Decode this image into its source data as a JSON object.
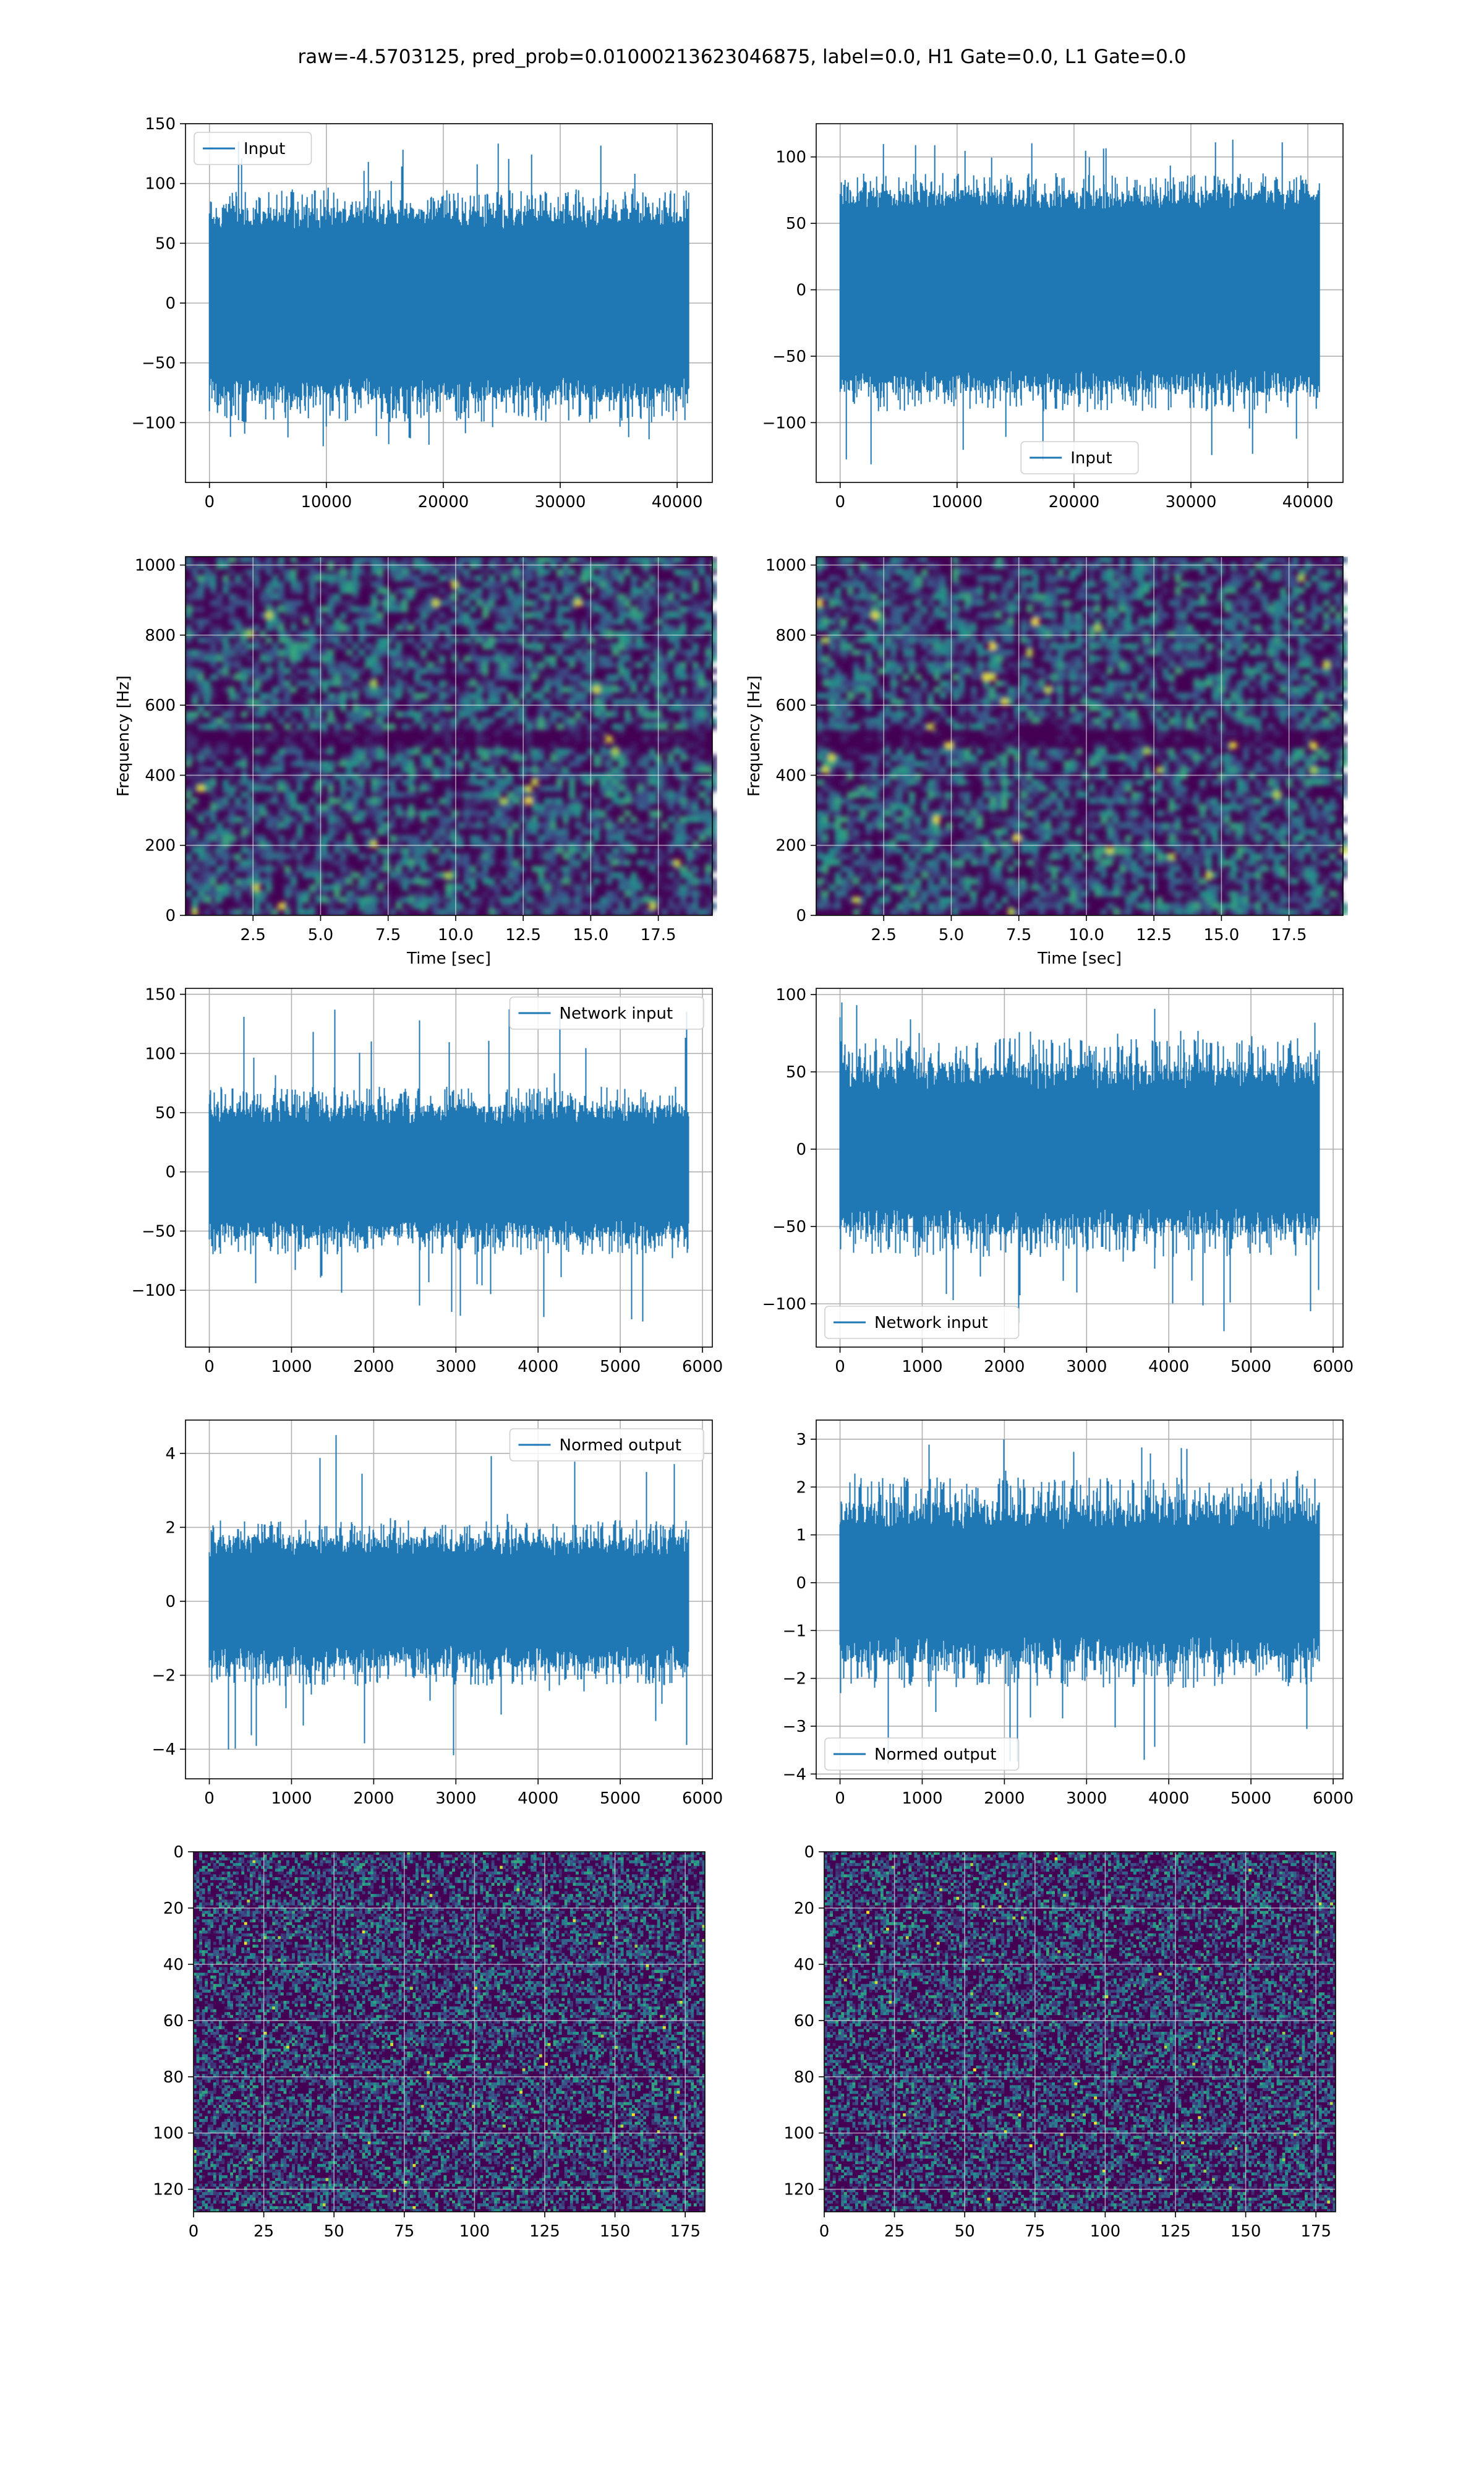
{
  "figure": {
    "suptitle": "raw=-4.5703125, pred_prob=0.01000213623046875, label=0.0, H1 Gate=0.0, L1 Gate=0.0",
    "series_color": "#1f77b4",
    "colormap": "viridis"
  },
  "chart_data": [
    {
      "id": "input-h1",
      "type": "line",
      "legend": [
        "Input"
      ],
      "legend_loc": "upper-left",
      "xlim": [
        -2048,
        43008
      ],
      "ylim": [
        -150,
        150
      ],
      "xticks": [
        0,
        10000,
        20000,
        30000,
        40000
      ],
      "yticks": [
        -100,
        -50,
        0,
        50,
        100,
        150
      ],
      "xtick_labels": [
        "0",
        "10000",
        "20000",
        "30000",
        "40000"
      ],
      "ytick_labels": [
        "−100",
        "−50",
        "0",
        "50",
        "100",
        "150"
      ],
      "series": [
        {
          "x_range": [
            0,
            40960
          ],
          "core": 62,
          "typical_max": 95,
          "peak_max": 138,
          "typical_min": -100,
          "peak_min": -120
        }
      ],
      "xlabel": "",
      "ylabel": ""
    },
    {
      "id": "input-l1",
      "type": "line",
      "legend": [
        "Input"
      ],
      "legend_loc": "lower-center",
      "xlim": [
        -2048,
        43008
      ],
      "ylim": [
        -145,
        125
      ],
      "xticks": [
        0,
        10000,
        20000,
        30000,
        40000
      ],
      "yticks": [
        -100,
        -50,
        0,
        50,
        100
      ],
      "xtick_labels": [
        "0",
        "10000",
        "20000",
        "30000",
        "40000"
      ],
      "ytick_labels": [
        "−100",
        "−50",
        "0",
        "50",
        "100"
      ],
      "series": [
        {
          "x_range": [
            0,
            40960
          ],
          "core": 60,
          "typical_max": 88,
          "peak_max": 118,
          "typical_min": -92,
          "peak_min": -135
        }
      ],
      "xlabel": "",
      "ylabel": ""
    },
    {
      "id": "spectrogram-h1",
      "type": "heatmap",
      "xlim": [
        0,
        19.5
      ],
      "ylim": [
        0,
        1024
      ],
      "xticks": [
        2.5,
        5.0,
        7.5,
        10.0,
        12.5,
        15.0,
        17.5
      ],
      "yticks": [
        0,
        200,
        400,
        600,
        800,
        1000
      ],
      "xtick_labels": [
        "2.5",
        "5.0",
        "7.5",
        "10.0",
        "12.5",
        "15.0",
        "17.5"
      ],
      "ytick_labels": [
        "0",
        "200",
        "400",
        "600",
        "800",
        "1000"
      ],
      "xlabel": "Time [sec]",
      "ylabel": "Frequency [Hz]",
      "dark_band_hz": 500
    },
    {
      "id": "spectrogram-l1",
      "type": "heatmap",
      "xlim": [
        0,
        19.5
      ],
      "ylim": [
        0,
        1024
      ],
      "xticks": [
        2.5,
        5.0,
        7.5,
        10.0,
        12.5,
        15.0,
        17.5
      ],
      "yticks": [
        0,
        200,
        400,
        600,
        800,
        1000
      ],
      "xtick_labels": [
        "2.5",
        "5.0",
        "7.5",
        "10.0",
        "12.5",
        "15.0",
        "17.5"
      ],
      "ytick_labels": [
        "0",
        "200",
        "400",
        "600",
        "800",
        "1000"
      ],
      "xlabel": "Time [sec]",
      "ylabel": "Frequency [Hz]",
      "dark_band_hz": 500
    },
    {
      "id": "network-input-h1",
      "type": "line",
      "legend": [
        "Network input"
      ],
      "legend_loc": "upper-right",
      "xlim": [
        -290,
        6120
      ],
      "ylim": [
        -148,
        155
      ],
      "xticks": [
        0,
        1000,
        2000,
        3000,
        4000,
        5000,
        6000
      ],
      "yticks": [
        -100,
        -50,
        0,
        50,
        100,
        150
      ],
      "xtick_labels": [
        "0",
        "1000",
        "2000",
        "3000",
        "4000",
        "5000",
        "6000"
      ],
      "ytick_labels": [
        "−100",
        "−50",
        "0",
        "50",
        "100",
        "150"
      ],
      "series": [
        {
          "x_range": [
            0,
            5830
          ],
          "core": 40,
          "typical_max": 72,
          "peak_max": 140,
          "typical_min": -70,
          "peak_min": -130
        }
      ],
      "xlabel": "",
      "ylabel": ""
    },
    {
      "id": "network-input-l1",
      "type": "line",
      "legend": [
        "Network input"
      ],
      "legend_loc": "lower-left",
      "xlim": [
        -290,
        6120
      ],
      "ylim": [
        -128,
        104
      ],
      "xticks": [
        0,
        1000,
        2000,
        3000,
        4000,
        5000,
        6000
      ],
      "yticks": [
        -100,
        -50,
        0,
        50,
        100
      ],
      "xtick_labels": [
        "0",
        "1000",
        "2000",
        "3000",
        "4000",
        "5000",
        "6000"
      ],
      "ytick_labels": [
        "−100",
        "−50",
        "0",
        "50",
        "100"
      ],
      "series": [
        {
          "x_range": [
            0,
            5830
          ],
          "core": 38,
          "typical_max": 72,
          "peak_max": 97,
          "typical_min": -70,
          "peak_min": -118
        }
      ],
      "xlabel": "",
      "ylabel": ""
    },
    {
      "id": "normed-output-h1",
      "type": "line",
      "legend": [
        "Normed output"
      ],
      "legend_loc": "upper-right",
      "xlim": [
        -290,
        6120
      ],
      "ylim": [
        -4.8,
        4.9
      ],
      "xticks": [
        0,
        1000,
        2000,
        3000,
        4000,
        5000,
        6000
      ],
      "yticks": [
        -4,
        -2,
        0,
        2,
        4
      ],
      "xtick_labels": [
        "0",
        "1000",
        "2000",
        "3000",
        "4000",
        "5000",
        "6000"
      ],
      "ytick_labels": [
        "−4",
        "−2",
        "0",
        "2",
        "4"
      ],
      "series": [
        {
          "x_range": [
            0,
            5830
          ],
          "core": 1.2,
          "typical_max": 2.2,
          "peak_max": 4.5,
          "typical_min": -2.3,
          "peak_min": -4.3
        }
      ],
      "xlabel": "",
      "ylabel": ""
    },
    {
      "id": "normed-output-l1",
      "type": "line",
      "legend": [
        "Normed output"
      ],
      "legend_loc": "lower-left",
      "xlim": [
        -290,
        6120
      ],
      "ylim": [
        -4.1,
        3.4
      ],
      "xticks": [
        0,
        1000,
        2000,
        3000,
        4000,
        5000,
        6000
      ],
      "yticks": [
        -4,
        -3,
        -2,
        -1,
        0,
        1,
        2,
        3
      ],
      "xtick_labels": [
        "0",
        "1000",
        "2000",
        "3000",
        "4000",
        "5000",
        "6000"
      ],
      "ytick_labels": [
        "−4",
        "−3",
        "−2",
        "−1",
        "0",
        "1",
        "2",
        "3"
      ],
      "series": [
        {
          "x_range": [
            0,
            5830
          ],
          "core": 1.1,
          "typical_max": 2.2,
          "peak_max": 3.1,
          "typical_min": -2.2,
          "peak_min": -3.8
        }
      ],
      "xlabel": "",
      "ylabel": ""
    },
    {
      "id": "matrix-h1",
      "type": "heatmap",
      "xlim": [
        0,
        182
      ],
      "ylim": [
        128,
        0
      ],
      "xticks": [
        0,
        25,
        50,
        75,
        100,
        125,
        150,
        175
      ],
      "yticks": [
        0,
        20,
        40,
        60,
        80,
        100,
        120
      ],
      "xtick_labels": [
        "0",
        "25",
        "50",
        "75",
        "100",
        "125",
        "150",
        "175"
      ],
      "ytick_labels": [
        "0",
        "20",
        "40",
        "60",
        "80",
        "100",
        "120"
      ],
      "xlabel": "",
      "ylabel": "",
      "columns": 182,
      "rows": 128
    },
    {
      "id": "matrix-l1",
      "type": "heatmap",
      "xlim": [
        0,
        182
      ],
      "ylim": [
        128,
        0
      ],
      "xticks": [
        0,
        25,
        50,
        75,
        100,
        125,
        150,
        175
      ],
      "yticks": [
        0,
        20,
        40,
        60,
        80,
        100,
        120
      ],
      "xtick_labels": [
        "0",
        "25",
        "50",
        "75",
        "100",
        "125",
        "150",
        "175"
      ],
      "ytick_labels": [
        "0",
        "20",
        "40",
        "60",
        "80",
        "100",
        "120"
      ],
      "xlabel": "",
      "ylabel": "",
      "columns": 182,
      "rows": 128
    }
  ]
}
